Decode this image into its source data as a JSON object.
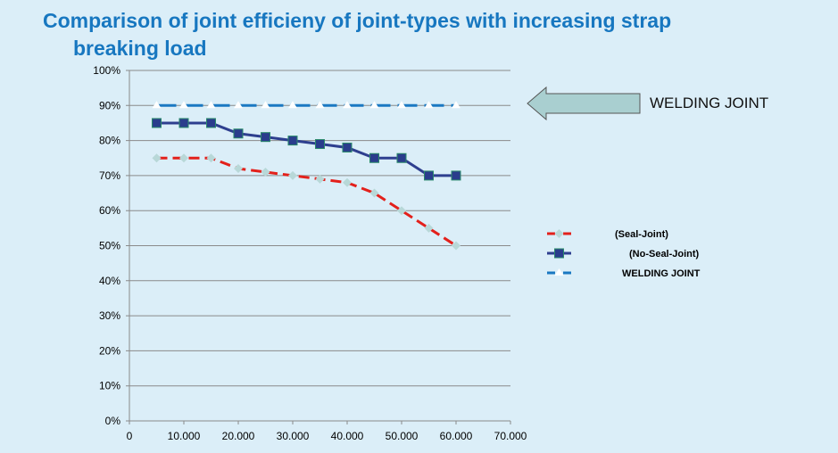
{
  "chart_data": {
    "type": "line",
    "title": "Comparison of joint efficieny of joint-types with increasing strap breaking load",
    "title_lines": [
      "Comparison of joint efficieny of joint-types with increasing strap",
      "breaking load"
    ],
    "x": [
      5000,
      10000,
      15000,
      20000,
      25000,
      30000,
      35000,
      40000,
      45000,
      50000,
      55000,
      60000
    ],
    "xlim": [
      0,
      70000
    ],
    "ylim": [
      0,
      100
    ],
    "x_ticks": [
      "0",
      "10.000",
      "20.000",
      "30.000",
      "40.000",
      "50.000",
      "60.000",
      "70.000"
    ],
    "y_ticks": [
      "0%",
      "10%",
      "20%",
      "30%",
      "40%",
      "50%",
      "60%",
      "70%",
      "80%",
      "90%",
      "100%"
    ],
    "grid": "horizontal",
    "legend_position": "right",
    "series": [
      {
        "name": "(Seal-Joint)",
        "color": "#e3201b",
        "marker": "diamond",
        "values": [
          75,
          75,
          75,
          72,
          71,
          70,
          69,
          68,
          65,
          60,
          55,
          50
        ]
      },
      {
        "name": "(No-Seal-Joint)",
        "color": "#2e3f8f",
        "marker": "square",
        "values": [
          85,
          85,
          85,
          82,
          81,
          80,
          79,
          78,
          75,
          75,
          70,
          70
        ]
      },
      {
        "name": "WELDING JOINT",
        "color": "#1a78c2",
        "marker": "triangle",
        "values": [
          90,
          90,
          90,
          90,
          90,
          90,
          90,
          90,
          90,
          90,
          90,
          90
        ]
      }
    ],
    "annotation": "WELDING JOINT"
  }
}
